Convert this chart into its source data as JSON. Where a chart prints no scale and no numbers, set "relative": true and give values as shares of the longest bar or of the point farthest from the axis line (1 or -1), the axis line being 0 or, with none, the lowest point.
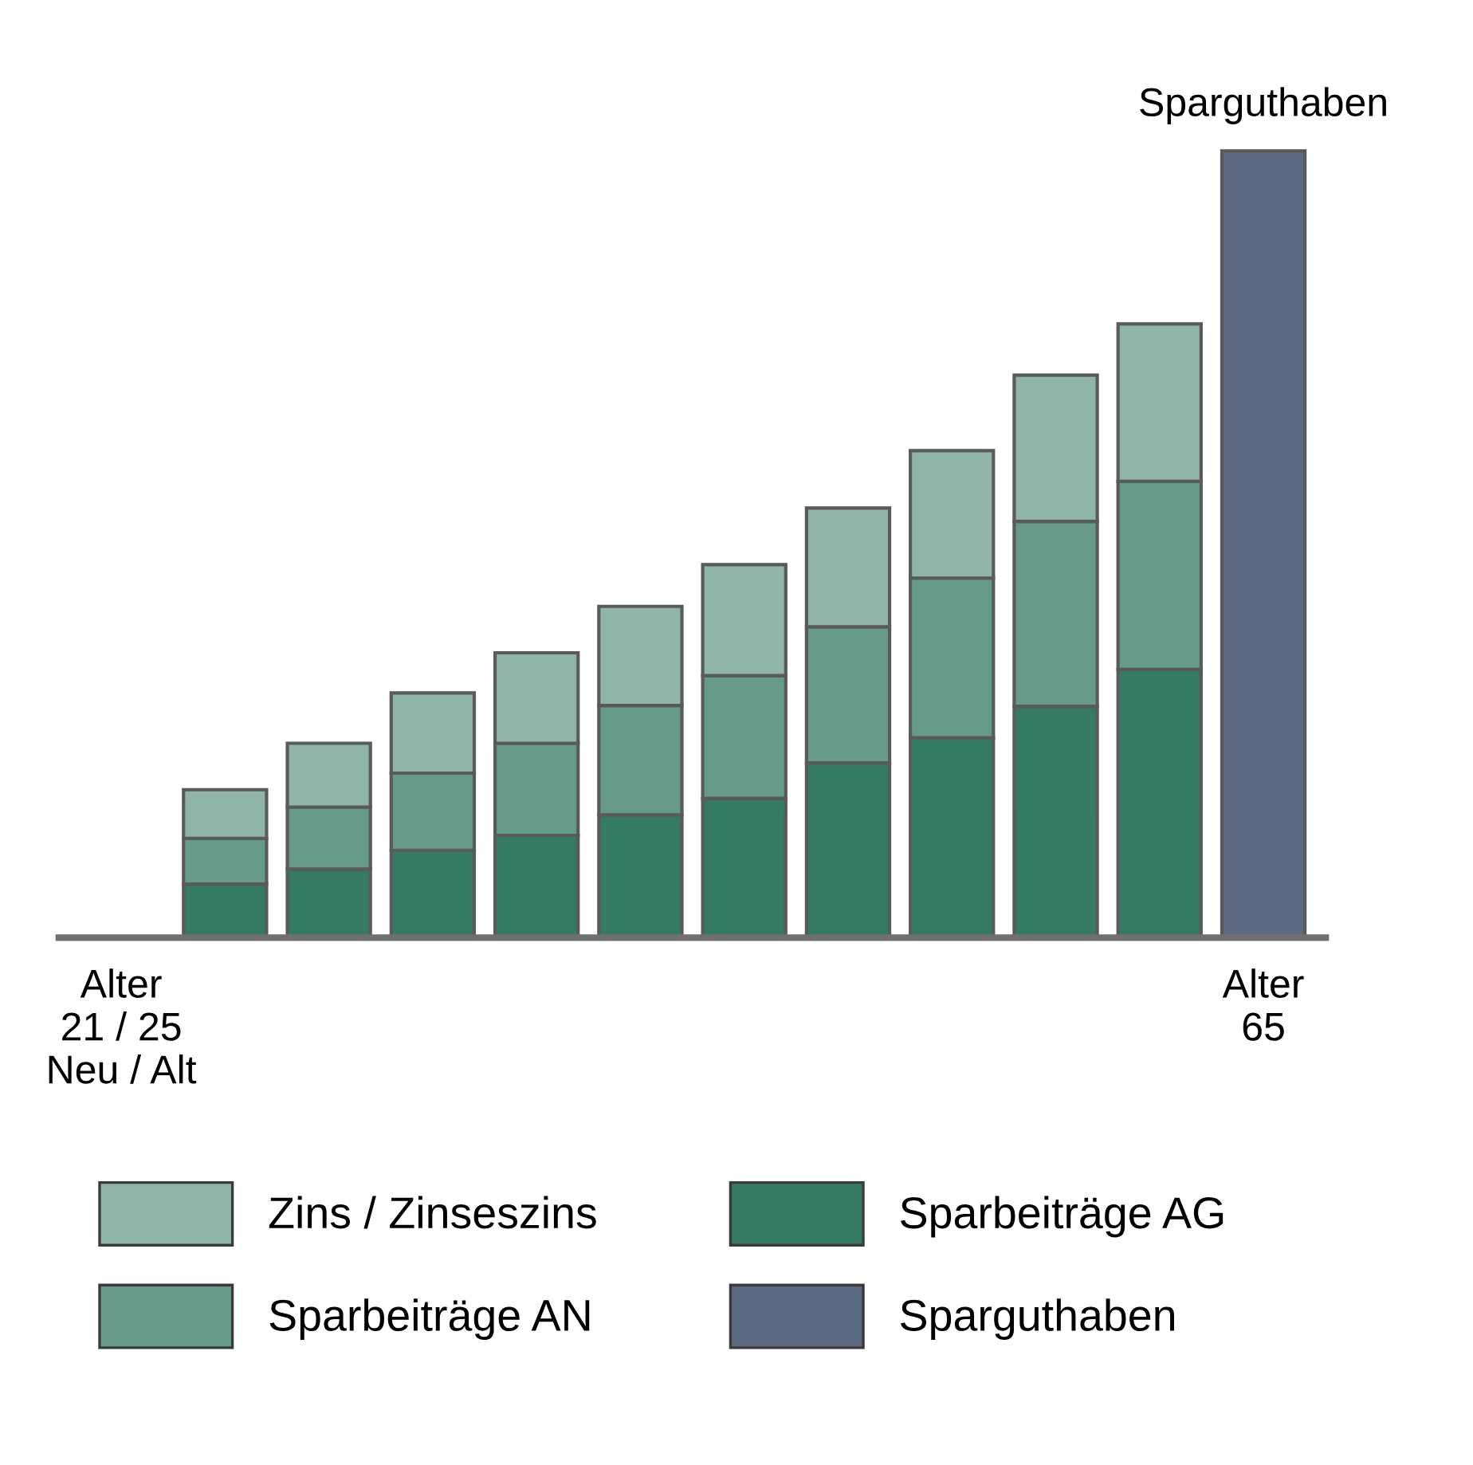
{
  "chart_data": {
    "type": "bar",
    "stacked": true,
    "relative": true,
    "legend": "bottom",
    "grid": false,
    "categories": [
      "Alter\n21 / 25\nNeu / Alt",
      null,
      null,
      null,
      null,
      null,
      null,
      null,
      null,
      null,
      null,
      "Alter\n65"
    ],
    "series": [
      {
        "name": "Sparbeiträge AG",
        "color": "#357a62",
        "values": [
          null,
          0.068,
          0.087,
          0.111,
          0.13,
          0.156,
          0.177,
          0.222,
          0.254,
          0.294,
          0.341,
          null
        ]
      },
      {
        "name": "Sparbeiträge AN",
        "color": "#659b88",
        "values": [
          null,
          0.058,
          0.079,
          0.098,
          0.117,
          0.139,
          0.156,
          0.173,
          0.203,
          0.235,
          0.239,
          null
        ]
      },
      {
        "name": "Zins / Zinseszins",
        "color": "#8fb5a6",
        "values": [
          null,
          0.062,
          0.081,
          0.102,
          0.115,
          0.126,
          0.141,
          0.151,
          0.162,
          0.186,
          0.2,
          null
        ]
      },
      {
        "name": "Sparguthaben",
        "color": "#5b6a80",
        "values": [
          null,
          null,
          null,
          null,
          null,
          null,
          null,
          null,
          null,
          null,
          null,
          1
        ]
      }
    ],
    "annotations": [
      {
        "text": "Sparguthaben",
        "x": "Alter\n65",
        "y": 1
      }
    ]
  }
}
